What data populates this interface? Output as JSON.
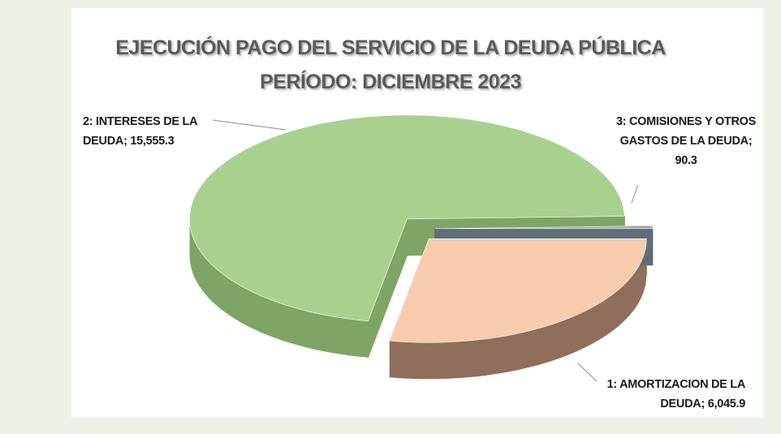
{
  "chart_data": {
    "type": "pie3d",
    "title": "EJECUCIÓN PAGO DEL SERVICIO DE LA DEUDA PÚBLICA",
    "subtitle": "PERÍODO: DICIEMBRE 2023",
    "categories": [
      "1: AMORTIZACION  DE LA DEUDA",
      "2: INTERESES  DE LA DEUDA",
      "3: COMISIONES  Y OTROS GASTOS  DE LA DEUDA"
    ],
    "values": [
      6045.9,
      15555.3,
      90.3
    ],
    "value_labels": [
      "6,045.9",
      "15,555.3",
      "90.3"
    ],
    "label_separator": "; ",
    "colors": [
      "#f8cbad",
      "#a9d18e",
      "#a5a5a5"
    ],
    "side_colors": [
      "#8f6e5b",
      "#7ea565",
      "#5e6d78"
    ]
  }
}
